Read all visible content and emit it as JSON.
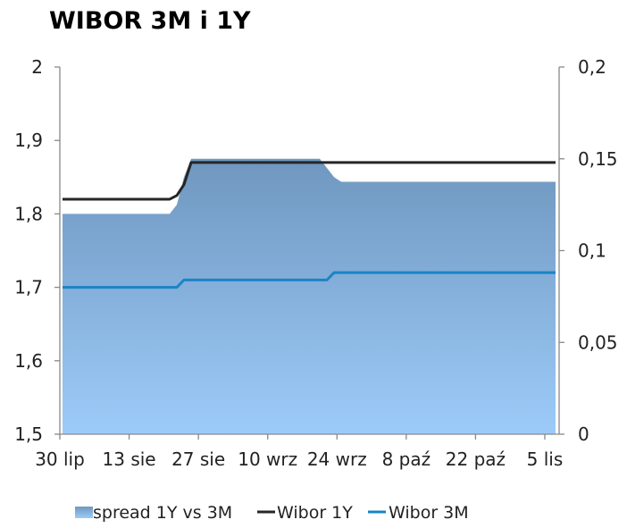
{
  "chart_data": {
    "type": "area",
    "title": "WIBOR 3M i 1Y",
    "x": [
      "2012-07-30",
      "2012-07-31",
      "2012-08-01",
      "2012-08-02",
      "2012-08-03",
      "2012-08-06",
      "2012-08-07",
      "2012-08-08",
      "2012-08-09",
      "2012-08-10",
      "2012-08-13",
      "2012-08-14",
      "2012-08-16",
      "2012-08-17",
      "2012-08-20",
      "2012-08-21",
      "2012-08-22",
      "2012-08-23",
      "2012-08-24",
      "2012-08-27",
      "2012-08-28",
      "2012-08-29",
      "2012-08-30",
      "2012-08-31",
      "2012-09-03",
      "2012-09-04",
      "2012-09-05",
      "2012-09-06",
      "2012-09-07",
      "2012-09-10",
      "2012-09-11",
      "2012-09-12",
      "2012-09-13",
      "2012-09-14",
      "2012-09-17",
      "2012-09-18",
      "2012-09-19",
      "2012-09-20",
      "2012-09-21",
      "2012-09-24",
      "2012-09-25",
      "2012-09-26",
      "2012-09-27",
      "2012-09-28",
      "2012-10-01",
      "2012-10-02",
      "2012-10-03",
      "2012-10-04",
      "2012-10-05",
      "2012-10-08",
      "2012-10-09",
      "2012-10-10",
      "2012-10-11",
      "2012-10-12",
      "2012-10-15",
      "2012-10-16",
      "2012-10-17",
      "2012-10-18",
      "2012-10-19",
      "2012-10-22",
      "2012-10-23",
      "2012-10-24",
      "2012-10-25",
      "2012-10-26",
      "2012-10-29",
      "2012-10-30",
      "2012-10-31",
      "2012-11-02",
      "2012-11-05",
      "2012-11-06"
    ],
    "series": [
      {
        "name": "spread 1Y vs 3M",
        "axis": "right",
        "type": "area",
        "color": "#6f97bf",
        "values": [
          0.12,
          0.12,
          0.12,
          0.12,
          0.12,
          0.12,
          0.12,
          0.12,
          0.12,
          0.12,
          0.12,
          0.12,
          0.12,
          0.12,
          0.12,
          0.12,
          0.125,
          0.14,
          0.15,
          0.15,
          0.15,
          0.15,
          0.15,
          0.15,
          0.15,
          0.15,
          0.15,
          0.15,
          0.15,
          0.15,
          0.15,
          0.15,
          0.15,
          0.15,
          0.15,
          0.15,
          0.15,
          0.145,
          0.14,
          0.1375,
          0.1375,
          0.1375,
          0.1375,
          0.1375,
          0.1375,
          0.1375,
          0.1375,
          0.1375,
          0.1375,
          0.1375,
          0.1375,
          0.1375,
          0.1375,
          0.1375,
          0.1375,
          0.1375,
          0.1375,
          0.1375,
          0.1375,
          0.1375,
          0.1375,
          0.1375,
          0.1375,
          0.1375,
          0.1375,
          0.1375,
          0.1375,
          0.1375,
          0.1375,
          0.1375
        ]
      },
      {
        "name": "Wibor 1Y",
        "axis": "left",
        "type": "line",
        "color": "#262626",
        "values": [
          1.82,
          1.82,
          1.82,
          1.82,
          1.82,
          1.82,
          1.82,
          1.82,
          1.82,
          1.82,
          1.82,
          1.82,
          1.82,
          1.82,
          1.82,
          1.82,
          1.825,
          1.84,
          1.87,
          1.87,
          1.87,
          1.87,
          1.87,
          1.87,
          1.87,
          1.87,
          1.87,
          1.87,
          1.87,
          1.87,
          1.87,
          1.87,
          1.87,
          1.87,
          1.87,
          1.87,
          1.87,
          1.87,
          1.87,
          1.87,
          1.87,
          1.87,
          1.87,
          1.87,
          1.87,
          1.87,
          1.87,
          1.87,
          1.87,
          1.87,
          1.87,
          1.87,
          1.87,
          1.87,
          1.87,
          1.87,
          1.87,
          1.87,
          1.87,
          1.87,
          1.87,
          1.87,
          1.87,
          1.87,
          1.87,
          1.87,
          1.87,
          1.87,
          1.87,
          1.87
        ]
      },
      {
        "name": "Wibor 3M",
        "axis": "left",
        "type": "line",
        "color": "#1a84c7",
        "values": [
          1.7,
          1.7,
          1.7,
          1.7,
          1.7,
          1.7,
          1.7,
          1.7,
          1.7,
          1.7,
          1.7,
          1.7,
          1.7,
          1.7,
          1.7,
          1.7,
          1.7,
          1.71,
          1.71,
          1.71,
          1.71,
          1.71,
          1.71,
          1.71,
          1.71,
          1.71,
          1.71,
          1.71,
          1.71,
          1.71,
          1.71,
          1.71,
          1.71,
          1.71,
          1.71,
          1.71,
          1.71,
          1.71,
          1.72,
          1.72,
          1.72,
          1.72,
          1.72,
          1.72,
          1.72,
          1.72,
          1.72,
          1.72,
          1.72,
          1.72,
          1.72,
          1.72,
          1.72,
          1.72,
          1.72,
          1.72,
          1.72,
          1.72,
          1.72,
          1.72,
          1.72,
          1.72,
          1.72,
          1.72,
          1.72,
          1.72,
          1.72,
          1.72,
          1.72,
          1.72
        ]
      }
    ],
    "x_tick_labels": [
      "30 lip",
      "13 sie",
      "27 sie",
      "10 wrz",
      "24 wrz",
      "8 paź",
      "22 paź",
      "5 lis"
    ],
    "y_left": {
      "ylim": [
        1.5,
        2.0
      ],
      "tick_values": [
        1.5,
        1.6,
        1.7,
        1.8,
        1.9,
        2.0
      ],
      "tick_labels": [
        "1,5",
        "1,6",
        "1,7",
        "1,8",
        "1,9",
        "2"
      ]
    },
    "y_right": {
      "ylim": [
        0,
        0.2
      ],
      "tick_values": [
        0,
        0.05,
        0.1,
        0.15,
        0.2
      ],
      "tick_labels": [
        "0",
        "0,05",
        "0,1",
        "0,15",
        "0,2"
      ]
    },
    "grid": false,
    "legend_position": "bottom",
    "legend": [
      {
        "label": "spread 1Y vs 3M",
        "marker": "area-swatch"
      },
      {
        "label": "Wibor 1Y",
        "marker": "line"
      },
      {
        "label": "Wibor 3M",
        "marker": "line"
      }
    ],
    "colors": {
      "area_top": "#6f97bf",
      "area_bottom": "#9dcbf9",
      "line_1y": "#262626",
      "line_3m": "#1a84c7",
      "axis": "#898989"
    }
  }
}
